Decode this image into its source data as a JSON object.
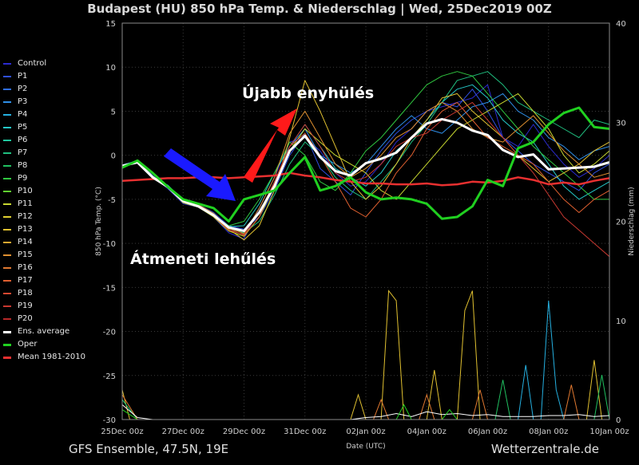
{
  "title": "Budapest  (HU)  850 hPa Temp. & Niederschlag | Wed, 25Dec2019 00Z",
  "footer_left": "GFS Ensemble, 47.5N, 19E",
  "footer_right": "Wetterzentrale.de",
  "annotations": {
    "cooling": "Átmeneti lehűlés",
    "warming": "Újabb enyhülés",
    "blue_arrow_color": "#1a1aff",
    "red_arrow_color": "#ff1a1a"
  },
  "legend": [
    {
      "label": "Control",
      "color": "#2b2bd0"
    },
    {
      "label": "P1",
      "color": "#2f4fe0"
    },
    {
      "label": "P2",
      "color": "#2f6fe8"
    },
    {
      "label": "P3",
      "color": "#2f8fe8"
    },
    {
      "label": "P4",
      "color": "#25b0e0"
    },
    {
      "label": "P5",
      "color": "#25c8c8"
    },
    {
      "label": "P6",
      "color": "#20c8a0"
    },
    {
      "label": "P7",
      "color": "#20c080"
    },
    {
      "label": "P8",
      "color": "#20c060"
    },
    {
      "label": "P9",
      "color": "#30c840"
    },
    {
      "label": "P10",
      "color": "#60d030"
    },
    {
      "label": "P11",
      "color": "#c8d830"
    },
    {
      "label": "P12",
      "color": "#e0d030"
    },
    {
      "label": "P13",
      "color": "#e0c030"
    },
    {
      "label": "P14",
      "color": "#e0a830"
    },
    {
      "label": "P15",
      "color": "#e09030"
    },
    {
      "label": "P16",
      "color": "#e07830"
    },
    {
      "label": "P17",
      "color": "#e06030"
    },
    {
      "label": "P18",
      "color": "#d84830"
    },
    {
      "label": "P19",
      "color": "#c83830"
    },
    {
      "label": "P20",
      "color": "#b82828"
    },
    {
      "label": "Ens. average",
      "color": "#ffffff"
    },
    {
      "label": "Oper",
      "color": "#20d020"
    },
    {
      "label": "Mean 1981-2010",
      "color": "#e83030"
    }
  ],
  "chart_data": {
    "type": "line",
    "title": "Budapest  (HU)  850 hPa Temp. & Niederschlag | Wed, 25Dec2019 00Z",
    "xlabel": "Date (UTC)",
    "ylabel": "850 hPa Temp. (°C)",
    "y2label": "Niederschlag (mm)",
    "ylim": [
      -30,
      15
    ],
    "y2lim": [
      0,
      40
    ],
    "yticks": [
      15,
      10,
      5,
      0,
      -5,
      -10,
      -15,
      -20,
      -25,
      -30
    ],
    "y2ticks": [
      40,
      30,
      20,
      10,
      0
    ],
    "xlim": [
      0,
      384
    ],
    "xticks": [
      {
        "h": 0,
        "label": "25Dec 00z"
      },
      {
        "h": 48,
        "label": "27Dec 00z"
      },
      {
        "h": 96,
        "label": "29Dec 00z"
      },
      {
        "h": 144,
        "label": "31Dec 00z"
      },
      {
        "h": 192,
        "label": "02Jan 00z"
      },
      {
        "h": 240,
        "label": "04Jan 00z"
      },
      {
        "h": 288,
        "label": "06Jan 00z"
      },
      {
        "h": 336,
        "label": "08Jan 00z"
      },
      {
        "h": 384,
        "label": "10Jan 00z"
      }
    ],
    "grid": true,
    "x_hours": [
      0,
      12,
      24,
      36,
      48,
      60,
      72,
      84,
      96,
      108,
      120,
      132,
      144,
      156,
      168,
      180,
      192,
      204,
      216,
      228,
      240,
      252,
      264,
      276,
      288,
      300,
      312,
      324,
      336,
      348,
      360,
      372,
      384
    ],
    "series": [
      {
        "name": "Ens. average",
        "color": "#ffffff",
        "width": 3,
        "values": [
          -1.2,
          -0.8,
          -2.5,
          -3.6,
          -5.2,
          -5.8,
          -6.8,
          -8.2,
          -8.6,
          -6.5,
          -3.5,
          0.5,
          2.2,
          -0.2,
          -1.8,
          -2.3,
          -0.9,
          -0.4,
          0.3,
          2.0,
          3.6,
          4.1,
          3.7,
          2.8,
          2.3,
          0.6,
          -0.2,
          0.1,
          -1.6,
          -1.5,
          -1.4,
          -1.3,
          -0.8
        ]
      },
      {
        "name": "Oper",
        "color": "#20d020",
        "width": 3,
        "values": [
          -1.4,
          -0.6,
          -2.0,
          -3.6,
          -5.0,
          -5.5,
          -6.0,
          -7.5,
          -5.0,
          -4.5,
          -4.0,
          -2.0,
          -0.2,
          -4.0,
          -3.5,
          -2.5,
          -4.2,
          -5.0,
          -4.8,
          -5.0,
          -5.5,
          -7.2,
          -7.0,
          -5.8,
          -2.8,
          -3.5,
          0.8,
          1.5,
          3.5,
          4.8,
          5.4,
          3.2,
          3.0
        ]
      },
      {
        "name": "Mean 1981-2010",
        "color": "#e83030",
        "width": 2.5,
        "values": [
          -2.9,
          -2.8,
          -2.7,
          -2.6,
          -2.6,
          -2.5,
          -2.5,
          -2.6,
          -2.5,
          -2.4,
          -2.3,
          -2.0,
          -2.3,
          -2.5,
          -2.8,
          -3.0,
          -3.2,
          -3.2,
          -3.3,
          -3.3,
          -3.2,
          -3.4,
          -3.3,
          -3.0,
          -3.1,
          -2.9,
          -2.5,
          -2.8,
          -3.3,
          -3.1,
          -3.3,
          -2.9,
          -2.6
        ]
      },
      {
        "name": "Control",
        "color": "#2b2bd0",
        "width": 1,
        "values": [
          -1.3,
          -0.7,
          -2.4,
          -3.8,
          -5.5,
          -5.9,
          -7.0,
          -8.8,
          -9.5,
          -6.0,
          -2.5,
          1.5,
          2.0,
          0.5,
          -2.0,
          -3.5,
          -3.0,
          -1.0,
          1.5,
          3.0,
          5.0,
          5.5,
          6.0,
          6.5,
          8.0,
          2.0,
          1.0,
          3.5,
          1.0,
          -1.0,
          -2.5,
          -1.5,
          0.0
        ]
      },
      {
        "name": "P1",
        "color": "#2f4fe0",
        "width": 1,
        "values": [
          -1.2,
          -0.9,
          -2.6,
          -3.5,
          -5.0,
          -5.6,
          -6.5,
          -8.0,
          -8.4,
          -7.0,
          -4.0,
          0.0,
          2.5,
          -1.5,
          -3.0,
          -4.5,
          -2.0,
          0.5,
          2.5,
          4.0,
          5.0,
          6.0,
          5.5,
          7.5,
          5.0,
          2.0,
          0.5,
          -1.0,
          -2.0,
          -3.0,
          -4.0,
          -2.0,
          -1.0
        ]
      },
      {
        "name": "P3",
        "color": "#2f8fe8",
        "width": 1,
        "values": [
          -1.1,
          -0.6,
          -2.3,
          -3.7,
          -5.3,
          -5.8,
          -6.6,
          -8.5,
          -9.0,
          -6.5,
          -3.0,
          1.0,
          3.0,
          0.0,
          -1.0,
          -2.0,
          -1.0,
          1.0,
          3.0,
          4.5,
          3.0,
          2.5,
          4.0,
          5.5,
          6.0,
          7.0,
          5.0,
          4.0,
          2.0,
          1.0,
          -0.5,
          0.5,
          1.0
        ]
      },
      {
        "name": "P5",
        "color": "#25c8c8",
        "width": 1,
        "values": [
          -1.3,
          -0.8,
          -2.5,
          -3.4,
          -5.1,
          -5.7,
          -6.9,
          -8.1,
          -8.0,
          -5.5,
          -2.0,
          1.0,
          3.5,
          1.0,
          -1.5,
          -2.5,
          -3.5,
          -2.0,
          0.5,
          2.0,
          4.0,
          6.0,
          7.5,
          8.0,
          6.5,
          4.0,
          2.5,
          1.5,
          -1.0,
          -3.5,
          -5.0,
          -4.0,
          -3.0
        ]
      },
      {
        "name": "P7",
        "color": "#20c080",
        "width": 1,
        "values": [
          -1.2,
          -0.7,
          -2.6,
          -3.6,
          -5.2,
          -5.9,
          -6.7,
          -8.3,
          -8.8,
          -7.5,
          -4.5,
          -1.0,
          1.5,
          0.0,
          -2.5,
          -4.0,
          -5.0,
          -3.0,
          -1.0,
          1.5,
          3.5,
          6.0,
          8.5,
          9.0,
          9.5,
          8.0,
          6.0,
          5.0,
          4.0,
          3.0,
          2.0,
          4.0,
          3.5
        ]
      },
      {
        "name": "P9",
        "color": "#30c840",
        "width": 1,
        "values": [
          -1.3,
          -0.8,
          -2.4,
          -3.5,
          -5.0,
          -5.7,
          -6.8,
          -8.0,
          -7.5,
          -5.0,
          -2.0,
          1.5,
          0.0,
          -3.0,
          -4.0,
          -2.0,
          0.5,
          2.0,
          4.0,
          6.0,
          8.0,
          9.0,
          9.5,
          9.0,
          7.0,
          5.0,
          3.0,
          1.0,
          -0.5,
          -2.0,
          -3.5,
          -5.0,
          -5.0
        ]
      },
      {
        "name": "P11",
        "color": "#c8d830",
        "width": 1,
        "values": [
          -1.2,
          -0.7,
          -2.5,
          -3.7,
          -5.4,
          -5.9,
          -7.0,
          -8.6,
          -9.2,
          -7.0,
          -3.5,
          0.5,
          3.0,
          1.5,
          0.0,
          -1.0,
          -2.0,
          -4.0,
          -5.0,
          -3.0,
          -1.0,
          1.0,
          3.0,
          4.0,
          5.0,
          6.0,
          7.0,
          5.0,
          3.0,
          0.0,
          -2.0,
          -1.0,
          0.5
        ]
      },
      {
        "name": "P13",
        "color": "#e0c030",
        "width": 1,
        "values": [
          -1.3,
          -0.6,
          -2.4,
          -3.6,
          -5.3,
          -5.8,
          -6.7,
          -8.4,
          -9.6,
          -8.0,
          -4.0,
          2.0,
          8.5,
          5.0,
          1.0,
          -3.0,
          -5.0,
          -3.5,
          -1.0,
          2.0,
          4.0,
          6.5,
          7.0,
          5.0,
          3.5,
          2.0,
          0.0,
          -1.5,
          -3.0,
          -2.0,
          -1.0,
          0.5,
          1.5
        ]
      },
      {
        "name": "P15",
        "color": "#e09030",
        "width": 1,
        "values": [
          -1.2,
          -0.8,
          -2.6,
          -3.5,
          -5.1,
          -5.6,
          -6.6,
          -8.2,
          -8.9,
          -6.0,
          -2.5,
          2.5,
          5.0,
          2.0,
          -1.0,
          -2.5,
          -1.5,
          0.0,
          2.0,
          3.0,
          5.0,
          6.0,
          5.0,
          3.0,
          2.0,
          1.5,
          3.0,
          4.5,
          2.5,
          0.5,
          -1.0,
          -2.5,
          -2.0
        ]
      },
      {
        "name": "P17",
        "color": "#e06030",
        "width": 1,
        "values": [
          -1.3,
          -0.7,
          -2.5,
          -3.6,
          -5.2,
          -5.7,
          -6.8,
          -8.3,
          -9.1,
          -7.0,
          -3.0,
          1.0,
          2.5,
          0.0,
          -3.0,
          -6.0,
          -7.0,
          -5.0,
          -2.0,
          0.0,
          3.0,
          5.0,
          6.0,
          4.0,
          2.0,
          1.0,
          0.0,
          -1.0,
          -3.0,
          -5.0,
          -6.5,
          -5.0,
          -4.0
        ]
      },
      {
        "name": "P19",
        "color": "#c83830",
        "width": 1,
        "values": [
          -1.2,
          -0.8,
          -2.4,
          -3.7,
          -5.3,
          -5.8,
          -6.9,
          -8.5,
          -9.0,
          -6.5,
          -3.0,
          1.0,
          3.5,
          1.0,
          -2.0,
          -3.0,
          -2.5,
          -1.0,
          1.0,
          2.0,
          2.5,
          4.0,
          5.0,
          6.0,
          4.0,
          2.0,
          0.0,
          -2.0,
          -4.5,
          -7.0,
          -8.5,
          -10.0,
          -11.5
        ]
      }
    ],
    "precip_series": [
      {
        "name": "P13",
        "color": "#e0c030",
        "values": [
          3,
          0,
          0,
          0,
          0,
          0,
          0,
          0,
          0,
          0,
          0,
          0,
          0,
          0,
          0,
          0,
          0,
          0,
          0,
          0,
          0,
          0,
          0,
          0,
          0,
          0,
          0,
          0,
          0,
          0,
          0,
          0,
          0
        ],
        "spikes": [
          {
            "h": 0,
            "v": 3
          },
          {
            "h": 186,
            "v": 2.5
          },
          {
            "h": 210,
            "v": 13
          },
          {
            "h": 216,
            "v": 12
          },
          {
            "h": 246,
            "v": 5
          },
          {
            "h": 270,
            "v": 11
          },
          {
            "h": 276,
            "v": 13
          },
          {
            "h": 372,
            "v": 6
          }
        ]
      },
      {
        "name": "P4",
        "color": "#25b0e0",
        "values": [
          2,
          0,
          0,
          0,
          0,
          0,
          0,
          0,
          0,
          0,
          0,
          0,
          0,
          0,
          0,
          0,
          0,
          0,
          0,
          0,
          0,
          0,
          0,
          0,
          0,
          0,
          0,
          0,
          0,
          0,
          0,
          0,
          0
        ],
        "spikes": [
          {
            "h": 318,
            "v": 5.5
          },
          {
            "h": 336,
            "v": 12
          },
          {
            "h": 342,
            "v": 3
          }
        ]
      },
      {
        "name": "P8",
        "color": "#20c060",
        "values": [
          2,
          0,
          0,
          0,
          0,
          0,
          0,
          0,
          0,
          0,
          0,
          0,
          0,
          0,
          0,
          0,
          0,
          0,
          0,
          0,
          0,
          0,
          0,
          0,
          0,
          0,
          0,
          0,
          0,
          0,
          0,
          0,
          0
        ],
        "spikes": [
          {
            "h": 300,
            "v": 4
          },
          {
            "h": 378,
            "v": 4.5
          }
        ]
      },
      {
        "name": "P16",
        "color": "#e07830",
        "values": [
          2.5,
          0,
          0,
          0,
          0,
          0,
          0,
          0,
          0,
          0,
          0,
          0,
          0,
          0,
          0,
          0,
          0,
          0,
          0,
          0,
          0,
          0,
          0,
          0,
          0,
          0,
          0,
          0,
          0,
          0,
          0,
          0,
          0
        ],
        "spikes": [
          {
            "h": 204,
            "v": 2
          },
          {
            "h": 240,
            "v": 2.5
          },
          {
            "h": 282,
            "v": 3
          },
          {
            "h": 354,
            "v": 3.5
          }
        ]
      },
      {
        "name": "Ens. average",
        "color": "#ffffff",
        "values": [
          1.5,
          0.2,
          0,
          0,
          0,
          0,
          0,
          0,
          0,
          0,
          0,
          0,
          0,
          0,
          0,
          0,
          0.2,
          0.3,
          0.6,
          0.3,
          0.8,
          0.5,
          0.6,
          0.4,
          0.5,
          0.3,
          0.3,
          0.3,
          0.4,
          0.4,
          0.5,
          0.3,
          0.4
        ],
        "spikes": []
      },
      {
        "name": "Oper",
        "color": "#20d020",
        "values": [
          1,
          0,
          0,
          0,
          0,
          0,
          0,
          0,
          0,
          0,
          0,
          0,
          0,
          0,
          0,
          0,
          0,
          0,
          0,
          0,
          0,
          0,
          0,
          0,
          0,
          0,
          0,
          0,
          0,
          0,
          0,
          0,
          0
        ],
        "spikes": [
          {
            "h": 222,
            "v": 1.5
          },
          {
            "h": 258,
            "v": 1
          }
        ]
      }
    ]
  }
}
